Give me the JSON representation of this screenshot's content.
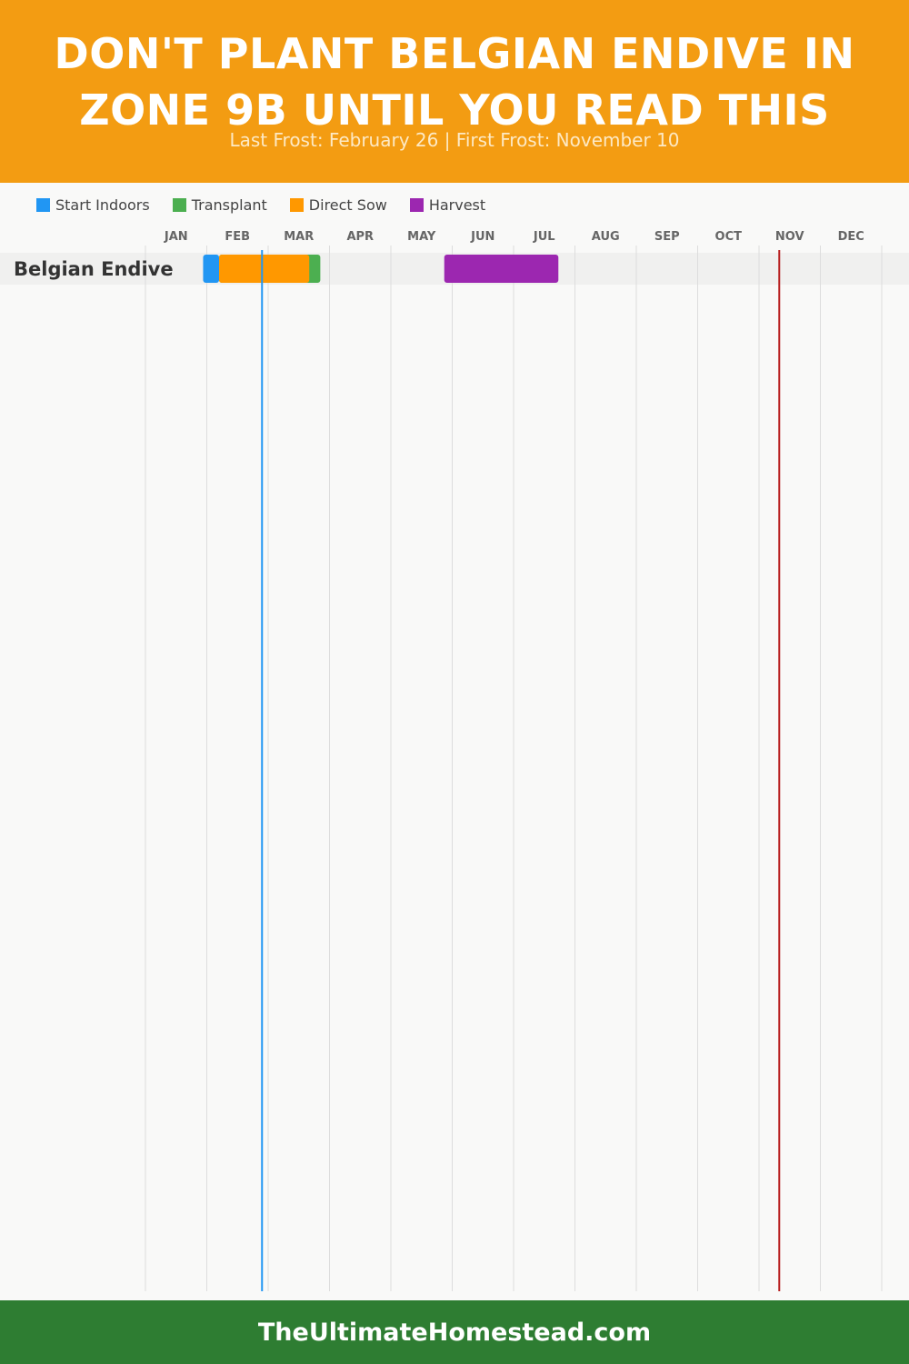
{
  "header": {
    "title": "DON'T PLANT BELGIAN ENDIVE IN ZONE 9B UNTIL YOU READ THIS",
    "subtitle": "Last Frost: February 26 | First Frost: November 10"
  },
  "footer": {
    "site": "TheUltimateHomestead.com"
  },
  "colors": {
    "header_bg": "#f39c12",
    "footer_bg": "#2e7d32",
    "last_frost": "#2196f3",
    "first_frost": "#b71c1c"
  },
  "chart_data": {
    "type": "gantt",
    "months": [
      "JAN",
      "FEB",
      "MAR",
      "APR",
      "MAY",
      "JUN",
      "JUL",
      "AUG",
      "SEP",
      "OCT",
      "NOV",
      "DEC"
    ],
    "legend": [
      {
        "label": "Start Indoors",
        "color": "#2196f3"
      },
      {
        "label": "Transplant",
        "color": "#4caf50"
      },
      {
        "label": "Direct Sow",
        "color": "#ff9800"
      },
      {
        "label": "Harvest",
        "color": "#9c27b0"
      }
    ],
    "crops": [
      {
        "name": "Belgian Endive",
        "bars": [
          {
            "phase": "Start Indoors",
            "start_month": 1.94,
            "end_month": 2.2
          },
          {
            "phase": "Transplant",
            "start_month": 2.2,
            "end_month": 3.85
          },
          {
            "phase": "Direct Sow",
            "start_month": 2.2,
            "end_month": 3.67
          },
          {
            "phase": "Harvest",
            "start_month": 5.87,
            "end_month": 7.73
          }
        ]
      }
    ],
    "markers": [
      {
        "label": "Last Frost",
        "month": 2.9,
        "color": "#2196f3"
      },
      {
        "label": "First Frost",
        "month": 11.33,
        "color": "#b71c1c"
      }
    ],
    "grid": true,
    "legend_position": "top-left"
  }
}
